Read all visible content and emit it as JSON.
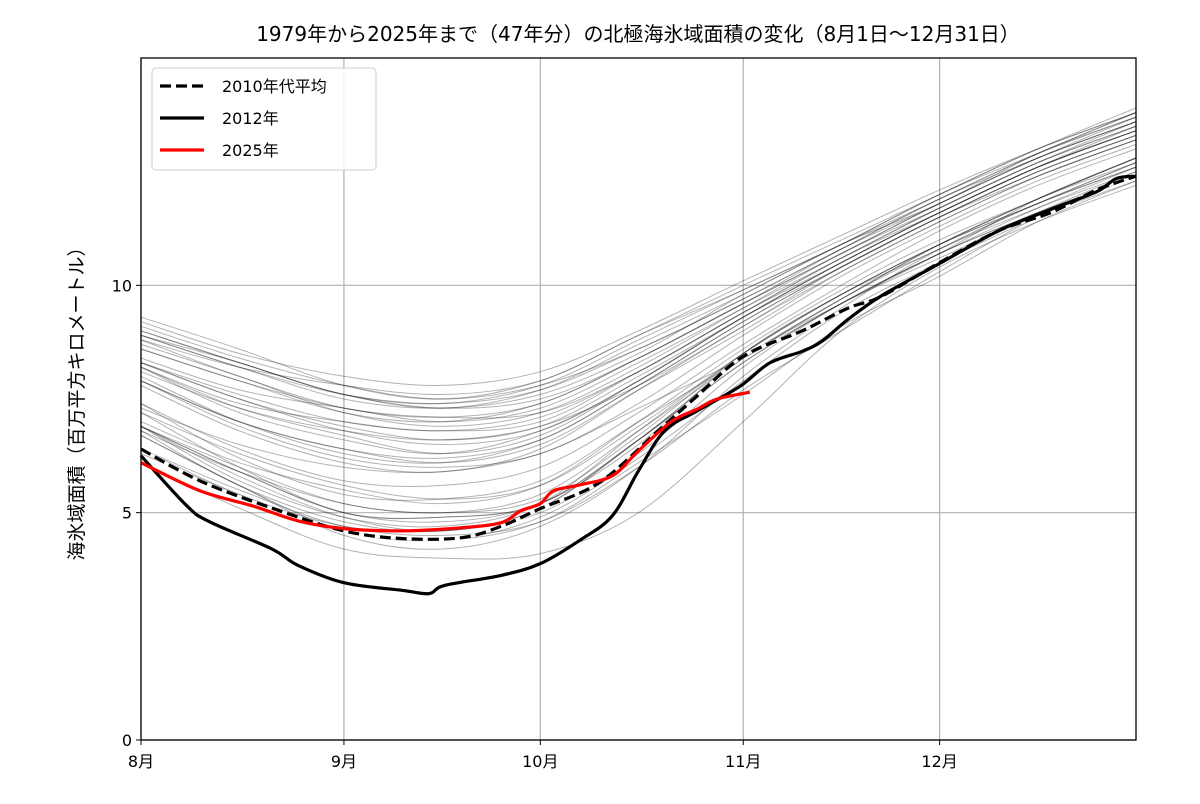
{
  "chart_data": {
    "type": "line",
    "title": "1979年から2025年まで（47年分）の北極海氷域面積の変化（8月1日〜12月31日）",
    "xlabel": "",
    "ylabel": "海氷域面積（百万平方キロメートル）",
    "xlim_days_from_aug1": [
      0,
      152
    ],
    "ylim": [
      0,
      15
    ],
    "grid": true,
    "legend_position": "top-left",
    "x_ticks": [
      {
        "label": "8月",
        "day": 0
      },
      {
        "label": "9月",
        "day": 31
      },
      {
        "label": "10月",
        "day": 61
      },
      {
        "label": "11月",
        "day": 92
      },
      {
        "label": "12月",
        "day": 122
      }
    ],
    "y_ticks": [
      0,
      5,
      10
    ],
    "highlight_series": [
      {
        "name": "2010年代平均",
        "color": "#000000",
        "style": "dashed",
        "x": [
          0,
          9,
          20,
          31,
          40,
          49,
          55,
          61,
          70,
          79,
          85,
          92,
          101,
          108,
          113,
          122,
          131,
          139,
          146,
          152
        ],
        "values": [
          6.4,
          5.7,
          5.1,
          4.6,
          4.43,
          4.45,
          4.7,
          5.09,
          5.66,
          6.8,
          7.57,
          8.44,
          9.0,
          9.5,
          9.75,
          10.5,
          11.2,
          11.6,
          12.1,
          12.4
        ]
      },
      {
        "name": "2012年",
        "color": "#000000",
        "style": "solid",
        "x": [
          0,
          7,
          10.5,
          20,
          24,
          31,
          40,
          44,
          46.4,
          55,
          61,
          67,
          72,
          76,
          80,
          85,
          91.5,
          96,
          101,
          104,
          108,
          113,
          122,
          131,
          139,
          146,
          149,
          152
        ],
        "values": [
          6.25,
          5.15,
          4.8,
          4.2,
          3.84,
          3.46,
          3.29,
          3.22,
          3.4,
          3.62,
          3.88,
          4.39,
          4.93,
          5.92,
          6.8,
          7.24,
          7.78,
          8.29,
          8.55,
          8.77,
          9.25,
          9.76,
          10.48,
          11.2,
          11.67,
          12.06,
          12.35,
          12.4
        ]
      },
      {
        "name": "2025年",
        "color": "#ff0000",
        "style": "solid",
        "x": [
          0,
          9,
          17,
          24,
          31,
          40,
          49,
          55,
          58,
          61,
          63,
          67,
          72,
          76,
          81,
          85,
          88,
          93
        ],
        "values": [
          6.1,
          5.48,
          5.15,
          4.82,
          4.65,
          4.6,
          4.67,
          4.78,
          5.04,
          5.2,
          5.48,
          5.61,
          5.81,
          6.36,
          7.0,
          7.28,
          7.5,
          7.65
        ]
      }
    ],
    "other_years": {
      "color": "#000000",
      "x": [
        0,
        15,
        31,
        46,
        61,
        76,
        92,
        107,
        122,
        137,
        152
      ],
      "series": [
        [
          8.9,
          8.2,
          7.6,
          7.4,
          7.7,
          8.6,
          9.7,
          10.8,
          11.8,
          12.8,
          13.7
        ],
        [
          8.8,
          8.2,
          7.8,
          7.6,
          7.9,
          8.9,
          9.9,
          10.9,
          11.9,
          12.9,
          13.8
        ],
        [
          8.4,
          7.7,
          7.3,
          7.0,
          7.3,
          8.3,
          9.5,
          10.6,
          11.7,
          12.7,
          13.6
        ],
        [
          8.9,
          8.3,
          7.6,
          7.4,
          7.8,
          8.8,
          9.9,
          10.9,
          12.0,
          13.0,
          13.8
        ],
        [
          9.0,
          8.3,
          7.6,
          7.3,
          7.7,
          8.7,
          9.8,
          10.9,
          11.8,
          12.9,
          13.7
        ],
        [
          8.6,
          7.9,
          7.2,
          7.0,
          7.4,
          8.4,
          9.6,
          10.7,
          11.8,
          12.8,
          13.6
        ],
        [
          8.7,
          8.0,
          7.2,
          6.9,
          7.2,
          8.2,
          9.5,
          10.7,
          11.7,
          12.7,
          13.5
        ],
        [
          9.1,
          8.4,
          7.8,
          7.5,
          7.8,
          8.6,
          9.7,
          10.8,
          11.9,
          12.9,
          13.8
        ],
        [
          9.0,
          8.3,
          7.6,
          7.3,
          7.5,
          8.4,
          9.6,
          10.8,
          11.9,
          12.8,
          13.6
        ],
        [
          8.9,
          8.2,
          7.5,
          7.3,
          7.6,
          8.5,
          9.8,
          10.9,
          12.0,
          12.9,
          13.7
        ],
        [
          8.6,
          7.9,
          7.3,
          7.1,
          7.2,
          8.1,
          9.4,
          10.6,
          11.7,
          12.7,
          13.5
        ],
        [
          8.2,
          7.2,
          6.6,
          6.3,
          6.8,
          7.9,
          9.3,
          10.5,
          11.6,
          12.6,
          13.5
        ],
        [
          8.3,
          7.5,
          6.9,
          6.6,
          6.9,
          8.0,
          9.3,
          10.5,
          11.6,
          12.6,
          13.4
        ],
        [
          9.3,
          8.6,
          7.8,
          7.5,
          7.9,
          8.9,
          10.0,
          11.0,
          12.0,
          13.0,
          13.9
        ],
        [
          8.3,
          7.5,
          6.8,
          6.5,
          6.8,
          7.9,
          9.3,
          10.5,
          11.6,
          12.6,
          13.4
        ],
        [
          8.8,
          8.0,
          7.3,
          7.1,
          7.4,
          8.4,
          9.6,
          10.7,
          11.8,
          12.8,
          13.6
        ],
        [
          7.9,
          7.0,
          6.4,
          6.2,
          6.6,
          7.8,
          9.2,
          10.4,
          11.5,
          12.5,
          13.3
        ],
        [
          9.2,
          8.5,
          8.0,
          7.8,
          8.1,
          9.0,
          10.1,
          11.1,
          12.1,
          13.0,
          13.8
        ],
        [
          8.2,
          7.4,
          7.0,
          6.8,
          7.1,
          8.1,
          9.4,
          10.5,
          11.6,
          12.6,
          13.4
        ],
        [
          8.1,
          7.3,
          6.8,
          6.6,
          6.9,
          7.8,
          9.1,
          10.4,
          11.5,
          12.5,
          13.3
        ],
        [
          7.9,
          7.0,
          6.4,
          6.1,
          6.5,
          7.7,
          9.0,
          10.3,
          11.4,
          12.4,
          13.2
        ],
        [
          8.2,
          7.3,
          6.7,
          6.3,
          6.7,
          7.9,
          9.3,
          10.4,
          11.5,
          12.5,
          13.3
        ],
        [
          8.3,
          7.6,
          7.0,
          6.8,
          7.0,
          8.1,
          9.4,
          10.6,
          11.6,
          12.6,
          13.4
        ],
        [
          7.8,
          6.8,
          6.1,
          5.9,
          6.4,
          7.7,
          9.1,
          10.3,
          11.4,
          12.4,
          13.2
        ],
        [
          8.0,
          7.0,
          6.3,
          6.1,
          6.6,
          7.8,
          9.2,
          10.4,
          11.5,
          12.4,
          13.2
        ],
        [
          7.9,
          6.9,
          6.2,
          6.0,
          6.3,
          7.4,
          8.9,
          10.2,
          11.3,
          12.3,
          13.1
        ],
        [
          7.4,
          6.4,
          5.7,
          5.6,
          6.0,
          7.2,
          8.7,
          10.0,
          11.2,
          12.2,
          13.0
        ],
        [
          7.3,
          6.5,
          6.0,
          5.9,
          6.3,
          7.3,
          8.4,
          9.6,
          10.7,
          11.9,
          12.8
        ],
        [
          6.7,
          5.6,
          4.5,
          4.2,
          4.7,
          6.0,
          8.0,
          9.5,
          10.8,
          11.8,
          12.7
        ],
        [
          6.9,
          5.7,
          4.9,
          4.7,
          5.2,
          6.8,
          8.5,
          9.8,
          10.9,
          11.9,
          12.8
        ],
        [
          7.4,
          6.2,
          5.4,
          5.3,
          5.7,
          7.0,
          8.4,
          9.7,
          10.9,
          11.9,
          12.8
        ],
        [
          7.2,
          6.0,
          5.0,
          4.9,
          5.2,
          6.6,
          8.4,
          9.7,
          10.9,
          11.9,
          12.7
        ],
        [
          6.4,
          5.4,
          4.7,
          4.6,
          5.0,
          6.3,
          8.2,
          9.6,
          10.7,
          11.7,
          12.6
        ],
        [
          7.2,
          6.3,
          5.6,
          5.3,
          5.6,
          6.9,
          8.5,
          9.8,
          10.9,
          11.8,
          12.7
        ],
        [
          7.0,
          6.1,
          5.5,
          5.2,
          5.6,
          7.0,
          8.6,
          9.9,
          11.0,
          11.9,
          12.8
        ],
        [
          6.8,
          5.6,
          4.8,
          4.6,
          5.1,
          6.6,
          8.4,
          9.6,
          10.6,
          11.6,
          12.5
        ],
        [
          6.4,
          5.5,
          4.7,
          4.5,
          4.8,
          6.0,
          7.7,
          9.0,
          10.3,
          11.5,
          12.4
        ],
        [
          6.9,
          5.9,
          5.0,
          4.9,
          5.2,
          6.6,
          8.3,
          9.6,
          10.7,
          11.6,
          12.4
        ],
        [
          6.9,
          5.9,
          5.0,
          4.8,
          5.2,
          6.5,
          8.5,
          9.8,
          10.8,
          11.8,
          12.6
        ],
        [
          6.3,
          5.4,
          4.6,
          4.4,
          4.8,
          6.1,
          7.6,
          9.1,
          10.2,
          11.4,
          12.3
        ],
        [
          6.1,
          5.1,
          4.2,
          4.0,
          4.1,
          5.0,
          7.0,
          9.0,
          10.4,
          11.4,
          12.2
        ],
        [
          6.9,
          6.0,
          5.2,
          5.0,
          5.3,
          6.7,
          8.5,
          9.8,
          10.9,
          11.8,
          12.6
        ],
        [
          6.8,
          5.9,
          5.2,
          5.0,
          5.4,
          6.8,
          8.4,
          9.7,
          10.8,
          11.7,
          12.5
        ],
        [
          6.9,
          5.8,
          4.9,
          4.6,
          5.1,
          6.6,
          8.3,
          9.6,
          10.7,
          11.6,
          12.4
        ],
        [
          6.7,
          5.6,
          4.6,
          4.4,
          4.9,
          6.2,
          7.9,
          9.4,
          10.5,
          11.5,
          12.3
        ]
      ]
    }
  }
}
